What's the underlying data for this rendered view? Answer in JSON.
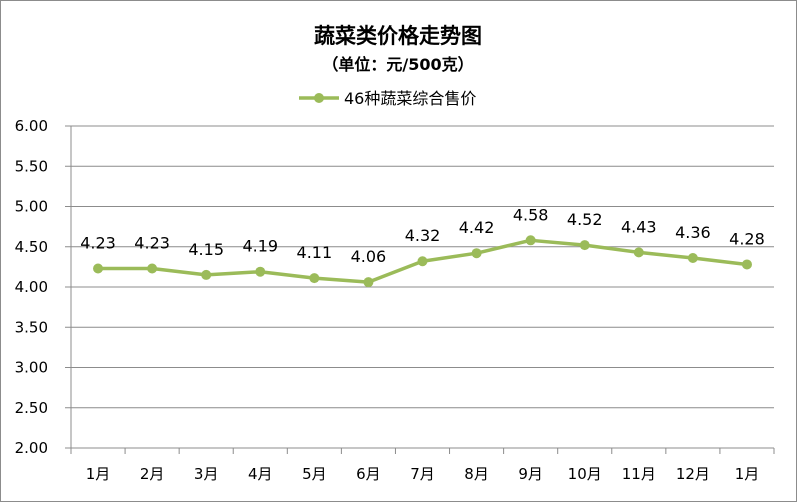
{
  "chart_data": {
    "type": "line",
    "title": "蔬菜类价格走势图",
    "subtitle": "（单位：元/500克）",
    "categories": [
      "1月",
      "2月",
      "3月",
      "4月",
      "5月",
      "6月",
      "7月",
      "8月",
      "9月",
      "10月",
      "11月",
      "12月",
      "1月"
    ],
    "series": [
      {
        "name": "46种蔬菜综合售价",
        "values": [
          4.23,
          4.23,
          4.15,
          4.19,
          4.11,
          4.06,
          4.32,
          4.42,
          4.58,
          4.52,
          4.43,
          4.36,
          4.28
        ],
        "color": "#9bbb59"
      }
    ],
    "ylim": [
      2.0,
      6.0
    ],
    "yticks": [
      "2.00",
      "2.50",
      "3.00",
      "3.50",
      "4.00",
      "4.50",
      "5.00",
      "5.50",
      "6.00"
    ],
    "ytick_values": [
      2.0,
      2.5,
      3.0,
      3.5,
      4.0,
      4.5,
      5.0,
      5.5,
      6.0
    ],
    "data_labels": [
      "4.23",
      "4.23",
      "4.15",
      "4.19",
      "4.11",
      "4.06",
      "4.32",
      "4.42",
      "4.58",
      "4.52",
      "4.43",
      "4.36",
      "4.28"
    ],
    "grid": true,
    "legend_position": "top"
  }
}
